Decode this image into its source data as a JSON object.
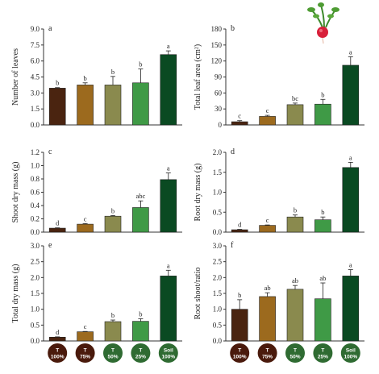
{
  "figure": {
    "treatments": [
      {
        "top": "T",
        "bottom": "100%",
        "color": "#4a2410",
        "circle": "#4a1a0c"
      },
      {
        "top": "T",
        "bottom": "75%",
        "color": "#9c6a1e",
        "circle": "#4a1a0c"
      },
      {
        "top": "T",
        "bottom": "50%",
        "color": "#8a8a4e",
        "circle": "#2f6b32"
      },
      {
        "top": "T",
        "bottom": "25%",
        "color": "#3f9a46",
        "circle": "#2f6b32"
      },
      {
        "top": "Soil",
        "bottom": "100%",
        "color": "#0a4a22",
        "circle": "#2f6b32"
      }
    ],
    "radish_icon": "radish-icon"
  },
  "chart_data": [
    {
      "type": "bar",
      "panel": "a",
      "ylabel": "Number of leaves",
      "ylim": [
        0,
        9
      ],
      "yticks": [
        "0.0",
        "1.5",
        "3.0",
        "4.5",
        "6.0",
        "7.5",
        "9.0"
      ],
      "values": [
        3.45,
        3.75,
        3.75,
        3.95,
        6.6
      ],
      "errors": [
        0.05,
        0.2,
        0.8,
        1.3,
        0.35
      ],
      "letters": [
        "b",
        "b",
        "b",
        "b",
        "a"
      ]
    },
    {
      "type": "bar",
      "panel": "b",
      "ylabel": "Total leaf area (cm²)",
      "ylim": [
        0,
        180
      ],
      "yticks": [
        "0",
        "30",
        "60",
        "90",
        "120",
        "150",
        "180"
      ],
      "values": [
        6,
        16,
        38,
        39,
        112
      ],
      "errors": [
        2,
        2,
        3,
        9,
        16
      ],
      "letters": [
        "c",
        "c",
        "bc",
        "b",
        "a"
      ]
    },
    {
      "type": "bar",
      "panel": "c",
      "ylabel": "Shoot dry mass (g)",
      "ylim": [
        0,
        1.2
      ],
      "yticks": [
        "0.0",
        "0.2",
        "0.4",
        "0.6",
        "0.8",
        "1.0",
        "1.2"
      ],
      "values": [
        0.06,
        0.12,
        0.24,
        0.37,
        0.79
      ],
      "errors": [
        0.005,
        0.01,
        0.01,
        0.1,
        0.1
      ],
      "letters": [
        "d",
        "c",
        "b",
        "abc",
        "a"
      ]
    },
    {
      "type": "bar",
      "panel": "d",
      "ylabel": "Root dry mass (g)",
      "ylim": [
        0,
        2.0
      ],
      "yticks": [
        "0.0",
        "0.5",
        "1.0",
        "1.5",
        "2.0"
      ],
      "values": [
        0.06,
        0.17,
        0.38,
        0.31,
        1.62
      ],
      "errors": [
        0.01,
        0.01,
        0.05,
        0.07,
        0.13
      ],
      "letters": [
        "d",
        "c",
        "b",
        "b",
        "a"
      ]
    },
    {
      "type": "bar",
      "panel": "e",
      "ylabel": "Total dry mass (g)",
      "ylim": [
        0,
        3.0
      ],
      "yticks": [
        "0.0",
        "0.5",
        "1.0",
        "1.5",
        "2.0",
        "2.5",
        "3.0"
      ],
      "values": [
        0.12,
        0.29,
        0.61,
        0.62,
        2.05
      ],
      "errors": [
        0.01,
        0.01,
        0.05,
        0.08,
        0.18
      ],
      "letters": [
        "d",
        "c",
        "b",
        "b",
        "a"
      ]
    },
    {
      "type": "bar",
      "panel": "f",
      "ylabel": "Root shoot/ratio",
      "ylim": [
        0,
        3.0
      ],
      "yticks": [
        "0.0",
        "0.5",
        "1.0",
        "1.5",
        "2.0",
        "2.5",
        "3.0"
      ],
      "values": [
        1.0,
        1.4,
        1.63,
        1.33,
        2.05
      ],
      "errors": [
        0.3,
        0.12,
        0.12,
        0.5,
        0.2
      ],
      "letters": [
        "b",
        "ab",
        "ab",
        "ab",
        "a"
      ]
    }
  ]
}
